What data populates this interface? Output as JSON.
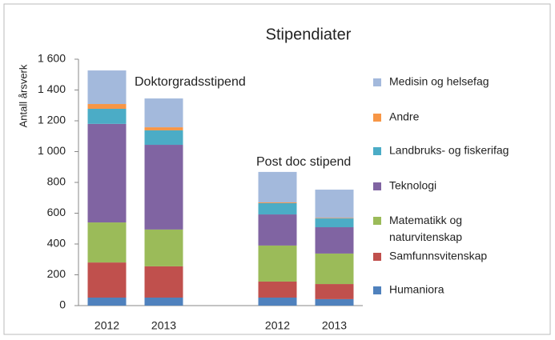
{
  "chart_data": {
    "type": "stacked_bar",
    "title": "Stipendiater",
    "y_label": "Antall årsverk",
    "annotations": [
      "Doktorgradsstipend",
      "Post doc stipend"
    ],
    "categories": [
      "2012",
      "2013",
      null,
      "2012",
      "2013"
    ],
    "series": [
      {
        "name": "Humaniora",
        "color": "#4f81bd",
        "values": [
          52,
          52,
          null,
          52,
          42
        ]
      },
      {
        "name": "Samfunnsvitenskap",
        "color": "#c0504d",
        "values": [
          228,
          203,
          null,
          104,
          98
        ]
      },
      {
        "name": "Matematikk og naturvitenskap",
        "color": "#9bbb59",
        "values": [
          260,
          239,
          null,
          234,
          198
        ]
      },
      {
        "name": "Teknologi",
        "color": "#8064a2",
        "values": [
          640,
          550,
          null,
          202,
          171
        ]
      },
      {
        "name": "Landbruks- og fiskerifag",
        "color": "#4bacc6",
        "values": [
          98,
          94,
          null,
          73,
          57
        ]
      },
      {
        "name": "Andre",
        "color": "#f79646",
        "values": [
          31,
          20,
          null,
          5,
          3
        ]
      },
      {
        "name": "Medisin og helsefag",
        "color": "#a3b9dc",
        "values": [
          218,
          187,
          null,
          198,
          184
        ]
      }
    ],
    "ylim": [
      0,
      1600
    ],
    "yticks": [
      0,
      200,
      400,
      600,
      800,
      {
        "value": 1000,
        "label": "1 000"
      },
      {
        "value": 1200,
        "label": "1 200"
      },
      {
        "value": 1400,
        "label": "1 400"
      },
      {
        "value": 1600,
        "label": "1 600"
      }
    ],
    "legend": "right"
  }
}
